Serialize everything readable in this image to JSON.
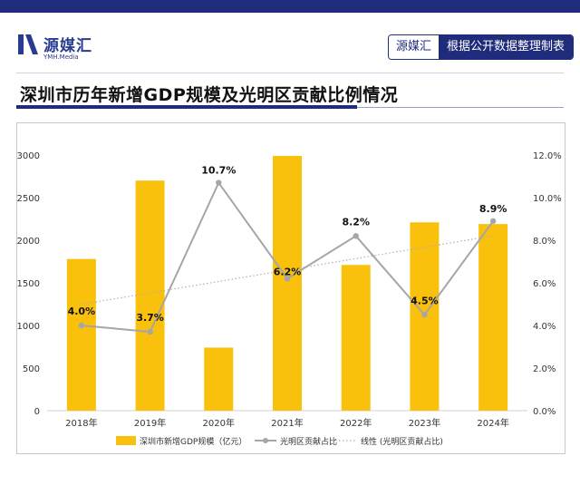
{
  "header": {
    "brand_name": "源媒汇",
    "brand_sub": "YMH.Media",
    "badge_left": "源媒汇",
    "badge_right": "根据公开数据整理制表"
  },
  "page_title": "深圳市历年新增GDP规模及光明区贡献比例情况",
  "colors": {
    "accent_navy": "#1f2b7b",
    "bar": "#f9c10c",
    "line": "#a6a6a6"
  },
  "chart_data": {
    "type": "bar+line",
    "categories": [
      "2018年",
      "2019年",
      "2020年",
      "2021年",
      "2022年",
      "2023年",
      "2024年"
    ],
    "series": [
      {
        "name": "深圳市新增GDP规模（亿元）",
        "type": "bar",
        "axis": "left",
        "values": [
          1780,
          2700,
          740,
          2990,
          1710,
          2210,
          2190
        ]
      },
      {
        "name": "光明区贡献占比",
        "type": "line",
        "axis": "right",
        "values": [
          4.0,
          3.7,
          10.7,
          6.2,
          8.2,
          4.5,
          8.9
        ],
        "labels": [
          "4.0%",
          "3.7%",
          "10.7%",
          "6.2%",
          "8.2%",
          "4.5%",
          "8.9%"
        ]
      },
      {
        "name": "线性 (光明区贡献占比)",
        "type": "trendline",
        "axis": "right",
        "values": [
          4.99,
          5.52,
          6.06,
          6.6,
          7.14,
          7.67,
          8.21
        ]
      }
    ],
    "y_left": {
      "min": 0,
      "max": 3000,
      "ticks": [
        "0",
        "500",
        "1000",
        "1500",
        "2000",
        "2500",
        "3000"
      ]
    },
    "y_right": {
      "min": 0,
      "max": 12,
      "ticks": [
        "0.0%",
        "2.0%",
        "4.0%",
        "6.0%",
        "8.0%",
        "10.0%",
        "12.0%"
      ]
    },
    "grid": false,
    "legend": "bottom"
  }
}
